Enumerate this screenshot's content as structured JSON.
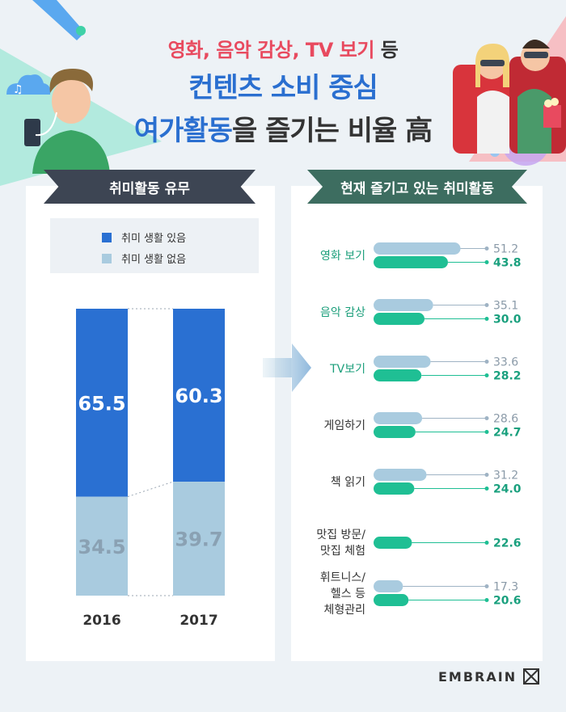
{
  "title": {
    "line1_highlight": "영화, 음악 감상, TV 보기",
    "line1_rest": " 등",
    "line2": "컨텐츠 소비 중심",
    "line3_highlight": "여가활동",
    "line3_rest": "을 즐기는 비율 高"
  },
  "left_panel": {
    "heading": "취미활동 유무"
  },
  "right_panel": {
    "heading": "현재 즐기고 있는 취미활동"
  },
  "colors": {
    "dark_blue": "#2a70d2",
    "light_blue": "#a9cbdf",
    "green": "#1fbf94",
    "title_red": "#e84a5f",
    "title_blue": "#2a6fd0"
  },
  "chart_data": [
    {
      "type": "bar",
      "stacked": true,
      "categories": [
        "2016",
        "2017"
      ],
      "series": [
        {
          "name": "취미 생활 있음",
          "values": [
            65.5,
            60.3
          ]
        },
        {
          "name": "취미 생활 없음",
          "values": [
            34.5,
            39.7
          ]
        }
      ],
      "value_labels": {
        "취미 생활 있음": [
          "65.5",
          "60.3"
        ],
        "취미 생활 없음": [
          "34.5",
          "39.7"
        ]
      },
      "ylim": [
        0,
        100
      ],
      "legend_position": "top"
    },
    {
      "type": "bar",
      "orientation": "horizontal",
      "categories": [
        "영화 보기",
        "음악 감상",
        "TV보기",
        "게임하기",
        "책 읽기",
        "맛집 방문/\n맛집 체험",
        "휘트니스/\n헬스 등\n체형관리"
      ],
      "series": [
        {
          "values": [
            51.2,
            35.1,
            33.6,
            28.6,
            31.2,
            null,
            17.3
          ]
        },
        {
          "values": [
            43.8,
            30.0,
            28.2,
            24.7,
            24.0,
            22.6,
            20.6
          ]
        }
      ],
      "value_labels": [
        [
          "51.2",
          "35.1",
          "33.6",
          "28.6",
          "31.2",
          null,
          "17.3"
        ],
        [
          "43.8",
          "30.0",
          "28.2",
          "24.7",
          "24.0",
          "22.6",
          "20.6"
        ]
      ]
    }
  ],
  "logo": {
    "text": "EMBRAIN"
  }
}
